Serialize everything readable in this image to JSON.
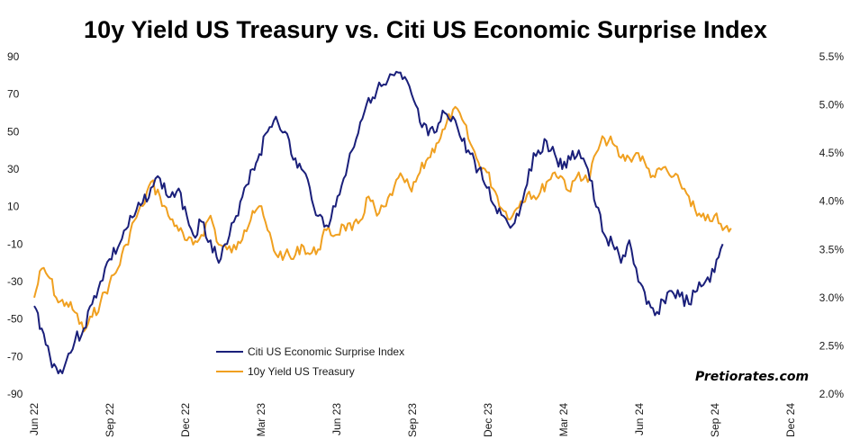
{
  "chart_data": {
    "type": "line",
    "title": "10y Yield US Treasury vs. Citi US Economic Surprise Index",
    "x_ticks": [
      "Jun 22",
      "Sep 22",
      "Dec 22",
      "Mar 23",
      "Jun 23",
      "Sep 23",
      "Dec 23",
      "Mar 24",
      "Jun 24",
      "Sep 24",
      "Dec 24"
    ],
    "x_range": [
      "2022-06-01",
      "2024-12-01"
    ],
    "y_left": {
      "ticks": [
        "90",
        "70",
        "50",
        "30",
        "10",
        "-10",
        "-30",
        "-50",
        "-70",
        "-90"
      ],
      "range": [
        -90,
        90
      ]
    },
    "y_right": {
      "ticks": [
        "5.5%",
        "5.0%",
        "4.5%",
        "4.0%",
        "3.5%",
        "3.0%",
        "2.5%",
        "2.0%"
      ],
      "range": [
        2.0,
        5.5
      ],
      "unit": "%"
    },
    "grid": false,
    "legend_placement": "bottom-left",
    "watermark": "Pretiorates.com",
    "series": [
      {
        "name": "Citi US Economic Surprise Index",
        "axis": "left",
        "color": "#1a1f7a",
        "points": [
          [
            "2022-06-01",
            -43
          ],
          [
            "2022-06-10",
            -55
          ],
          [
            "2022-06-20",
            -70
          ],
          [
            "2022-06-30",
            -79
          ],
          [
            "2022-07-10",
            -72
          ],
          [
            "2022-07-20",
            -62
          ],
          [
            "2022-07-31",
            -55
          ],
          [
            "2022-08-10",
            -42
          ],
          [
            "2022-08-20",
            -30
          ],
          [
            "2022-08-31",
            -18
          ],
          [
            "2022-09-10",
            -12
          ],
          [
            "2022-09-20",
            -2
          ],
          [
            "2022-09-30",
            5
          ],
          [
            "2022-10-10",
            12
          ],
          [
            "2022-10-20",
            20
          ],
          [
            "2022-10-31",
            25
          ],
          [
            "2022-11-10",
            15
          ],
          [
            "2022-11-20",
            18
          ],
          [
            "2022-11-30",
            10
          ],
          [
            "2022-12-10",
            -5
          ],
          [
            "2022-12-20",
            2
          ],
          [
            "2022-12-31",
            -8
          ],
          [
            "2023-01-10",
            -20
          ],
          [
            "2023-01-20",
            -10
          ],
          [
            "2023-01-31",
            5
          ],
          [
            "2023-02-10",
            20
          ],
          [
            "2023-02-20",
            30
          ],
          [
            "2023-02-28",
            38
          ],
          [
            "2023-03-10",
            50
          ],
          [
            "2023-03-20",
            58
          ],
          [
            "2023-03-31",
            50
          ],
          [
            "2023-04-10",
            35
          ],
          [
            "2023-04-20",
            30
          ],
          [
            "2023-04-30",
            20
          ],
          [
            "2023-05-10",
            5
          ],
          [
            "2023-05-20",
            0
          ],
          [
            "2023-05-31",
            10
          ],
          [
            "2023-06-10",
            25
          ],
          [
            "2023-06-20",
            40
          ],
          [
            "2023-06-30",
            55
          ],
          [
            "2023-07-10",
            68
          ],
          [
            "2023-07-20",
            72
          ],
          [
            "2023-07-31",
            75
          ],
          [
            "2023-08-10",
            80
          ],
          [
            "2023-08-20",
            78
          ],
          [
            "2023-08-31",
            70
          ],
          [
            "2023-09-10",
            55
          ],
          [
            "2023-09-20",
            48
          ],
          [
            "2023-09-30",
            50
          ],
          [
            "2023-10-10",
            60
          ],
          [
            "2023-10-20",
            58
          ],
          [
            "2023-10-31",
            45
          ],
          [
            "2023-11-10",
            38
          ],
          [
            "2023-11-20",
            30
          ],
          [
            "2023-11-30",
            20
          ],
          [
            "2023-12-10",
            10
          ],
          [
            "2023-12-20",
            5
          ],
          [
            "2023-12-31",
            0
          ],
          [
            "2024-01-10",
            10
          ],
          [
            "2024-01-20",
            30
          ],
          [
            "2024-01-31",
            40
          ],
          [
            "2024-02-10",
            45
          ],
          [
            "2024-02-20",
            38
          ],
          [
            "2024-02-29",
            30
          ],
          [
            "2024-03-10",
            35
          ],
          [
            "2024-03-20",
            40
          ],
          [
            "2024-03-31",
            30
          ],
          [
            "2024-04-10",
            10
          ],
          [
            "2024-04-20",
            -5
          ],
          [
            "2024-04-30",
            -10
          ],
          [
            "2024-05-10",
            -20
          ],
          [
            "2024-05-20",
            -8
          ],
          [
            "2024-05-31",
            -30
          ],
          [
            "2024-06-10",
            -42
          ],
          [
            "2024-06-20",
            -48
          ],
          [
            "2024-06-30",
            -40
          ],
          [
            "2024-07-10",
            -35
          ],
          [
            "2024-07-20",
            -38
          ],
          [
            "2024-07-31",
            -42
          ],
          [
            "2024-08-10",
            -35
          ],
          [
            "2024-08-20",
            -30
          ],
          [
            "2024-08-31",
            -25
          ],
          [
            "2024-09-10",
            -10
          ]
        ]
      },
      {
        "name": "10y Yield US Treasury",
        "axis": "right",
        "color": "#f0a020",
        "points": [
          [
            "2022-06-01",
            3.0
          ],
          [
            "2022-06-10",
            3.3
          ],
          [
            "2022-06-20",
            3.2
          ],
          [
            "2022-06-30",
            2.95
          ],
          [
            "2022-07-10",
            2.95
          ],
          [
            "2022-07-20",
            2.85
          ],
          [
            "2022-07-31",
            2.65
          ],
          [
            "2022-08-10",
            2.8
          ],
          [
            "2022-08-20",
            2.95
          ],
          [
            "2022-08-31",
            3.15
          ],
          [
            "2022-09-10",
            3.3
          ],
          [
            "2022-09-20",
            3.55
          ],
          [
            "2022-09-30",
            3.8
          ],
          [
            "2022-10-10",
            3.95
          ],
          [
            "2022-10-20",
            4.2
          ],
          [
            "2022-10-31",
            4.05
          ],
          [
            "2022-11-10",
            3.85
          ],
          [
            "2022-11-20",
            3.75
          ],
          [
            "2022-11-30",
            3.6
          ],
          [
            "2022-12-10",
            3.55
          ],
          [
            "2022-12-20",
            3.65
          ],
          [
            "2022-12-31",
            3.85
          ],
          [
            "2023-01-10",
            3.55
          ],
          [
            "2023-01-20",
            3.5
          ],
          [
            "2023-01-31",
            3.5
          ],
          [
            "2023-02-10",
            3.7
          ],
          [
            "2023-02-20",
            3.9
          ],
          [
            "2023-02-28",
            3.95
          ],
          [
            "2023-03-10",
            3.7
          ],
          [
            "2023-03-20",
            3.45
          ],
          [
            "2023-03-31",
            3.45
          ],
          [
            "2023-04-10",
            3.4
          ],
          [
            "2023-04-20",
            3.55
          ],
          [
            "2023-04-30",
            3.45
          ],
          [
            "2023-05-10",
            3.5
          ],
          [
            "2023-05-20",
            3.7
          ],
          [
            "2023-05-31",
            3.65
          ],
          [
            "2023-06-10",
            3.75
          ],
          [
            "2023-06-20",
            3.7
          ],
          [
            "2023-06-30",
            3.8
          ],
          [
            "2023-07-10",
            4.05
          ],
          [
            "2023-07-20",
            3.85
          ],
          [
            "2023-07-31",
            3.95
          ],
          [
            "2023-08-10",
            4.15
          ],
          [
            "2023-08-20",
            4.25
          ],
          [
            "2023-08-31",
            4.1
          ],
          [
            "2023-09-10",
            4.3
          ],
          [
            "2023-09-20",
            4.45
          ],
          [
            "2023-09-30",
            4.6
          ],
          [
            "2023-10-10",
            4.75
          ],
          [
            "2023-10-20",
            4.95
          ],
          [
            "2023-10-31",
            4.85
          ],
          [
            "2023-11-10",
            4.6
          ],
          [
            "2023-11-20",
            4.4
          ],
          [
            "2023-11-30",
            4.3
          ],
          [
            "2023-12-10",
            4.1
          ],
          [
            "2023-12-20",
            3.9
          ],
          [
            "2023-12-31",
            3.85
          ],
          [
            "2024-01-10",
            4.0
          ],
          [
            "2024-01-20",
            4.1
          ],
          [
            "2024-01-31",
            4.05
          ],
          [
            "2024-02-10",
            4.2
          ],
          [
            "2024-02-20",
            4.3
          ],
          [
            "2024-02-29",
            4.25
          ],
          [
            "2024-03-10",
            4.1
          ],
          [
            "2024-03-20",
            4.3
          ],
          [
            "2024-03-31",
            4.2
          ],
          [
            "2024-04-10",
            4.5
          ],
          [
            "2024-04-20",
            4.65
          ],
          [
            "2024-04-30",
            4.6
          ],
          [
            "2024-05-10",
            4.45
          ],
          [
            "2024-05-20",
            4.45
          ],
          [
            "2024-05-31",
            4.5
          ],
          [
            "2024-06-10",
            4.35
          ],
          [
            "2024-06-20",
            4.25
          ],
          [
            "2024-06-30",
            4.35
          ],
          [
            "2024-07-10",
            4.25
          ],
          [
            "2024-07-20",
            4.2
          ],
          [
            "2024-07-31",
            4.05
          ],
          [
            "2024-08-10",
            3.85
          ],
          [
            "2024-08-20",
            3.8
          ],
          [
            "2024-08-31",
            3.85
          ],
          [
            "2024-09-10",
            3.7
          ],
          [
            "2024-09-20",
            3.72
          ]
        ]
      }
    ]
  }
}
